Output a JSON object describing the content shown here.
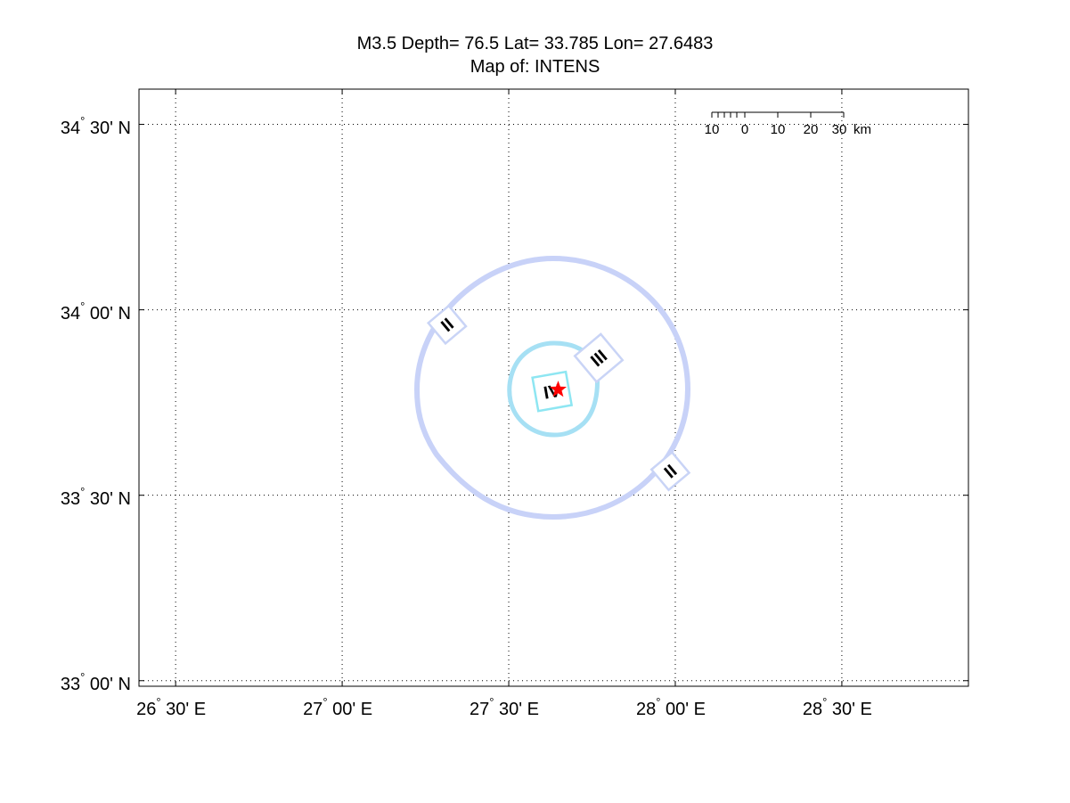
{
  "title": {
    "line1": "M3.5 Depth= 76.5 Lat= 33.785 Lon= 27.6483",
    "line2": "Map of: INTENS"
  },
  "axes": {
    "lat_ticks": [
      {
        "deg": "34",
        "min": "30' N",
        "value": 34.5
      },
      {
        "deg": "34",
        "min": "00' N",
        "value": 34.0
      },
      {
        "deg": "33",
        "min": "30' N",
        "value": 33.5
      },
      {
        "deg": "33",
        "min": "00' N",
        "value": 33.0
      }
    ],
    "lon_ticks": [
      {
        "deg": "26",
        "min": "30' E",
        "value": 26.5
      },
      {
        "deg": "27",
        "min": "00' E",
        "value": 27.0
      },
      {
        "deg": "27",
        "min": "30' E",
        "value": 27.5
      },
      {
        "deg": "28",
        "min": "00' E",
        "value": 28.0
      },
      {
        "deg": "28",
        "min": "30' E",
        "value": 28.5
      }
    ],
    "lon_range": [
      26.39,
      28.88
    ],
    "lat_range": [
      32.985,
      34.595
    ],
    "grid": "dotted"
  },
  "scale_bar": {
    "labels": [
      "10",
      "0",
      "10",
      "20",
      "30"
    ],
    "unit": "km"
  },
  "epicenter": {
    "lat": 33.785,
    "lon": 27.6483,
    "symbol": "red-star"
  },
  "intensity_markers": [
    {
      "label": "II",
      "lat": 33.96,
      "lon": 27.315
    },
    {
      "label": "III",
      "lat": 33.87,
      "lon": 27.77
    },
    {
      "label": "IV",
      "lat": 33.78,
      "lon": 27.63
    },
    {
      "label": "II",
      "lat": 33.565,
      "lon": 27.985
    }
  ],
  "colors": {
    "contour_outer": "#c8d2f8",
    "contour_inner": "#a6e0f4",
    "box_outer": "#c9d4f6",
    "box_inner": "#8ee6f2",
    "epicenter": "#ff0000",
    "grid": "#000000"
  }
}
